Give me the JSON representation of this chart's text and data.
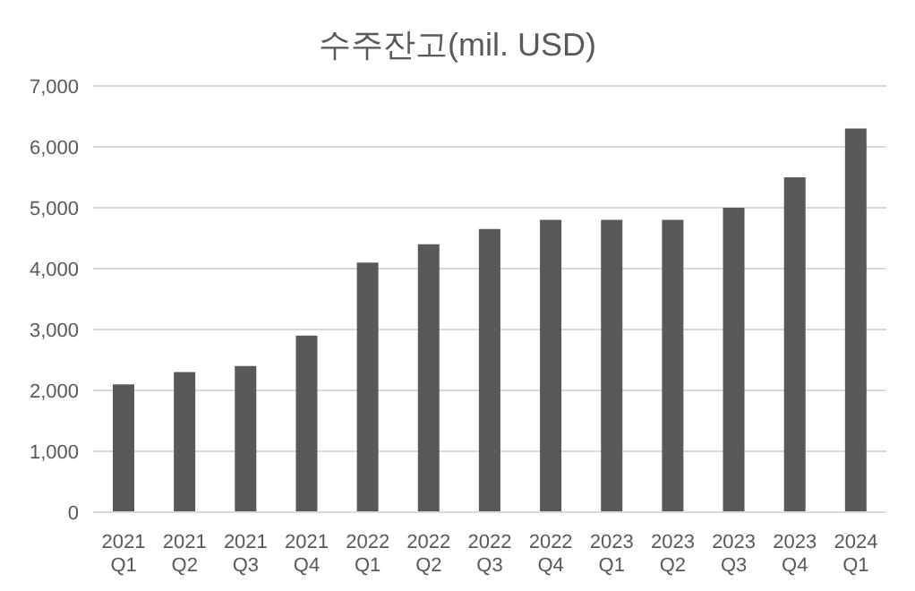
{
  "chart_data": {
    "type": "bar",
    "title": "수주잔고(mil. USD)",
    "categories": [
      "2021\nQ1",
      "2021\nQ2",
      "2021\nQ3",
      "2021\nQ4",
      "2022\nQ1",
      "2022\nQ2",
      "2022\nQ3",
      "2022\nQ4",
      "2023\nQ1",
      "2023\nQ2",
      "2023\nQ3",
      "2023\nQ4",
      "2024\nQ1"
    ],
    "values": [
      2100,
      2300,
      2400,
      2900,
      4100,
      4400,
      4650,
      4800,
      4800,
      4800,
      5000,
      5500,
      6300
    ],
    "color": "#595959",
    "ylim": [
      0,
      7000
    ],
    "yticks": [
      {
        "value": 0,
        "label": "0"
      },
      {
        "value": 1000,
        "label": "1,000"
      },
      {
        "value": 2000,
        "label": "2,000"
      },
      {
        "value": 3000,
        "label": "3,000"
      },
      {
        "value": 4000,
        "label": "4,000"
      },
      {
        "value": 5000,
        "label": "5,000"
      },
      {
        "value": 6000,
        "label": "6,000"
      },
      {
        "value": 7000,
        "label": "7,000"
      }
    ],
    "grid": "y"
  }
}
